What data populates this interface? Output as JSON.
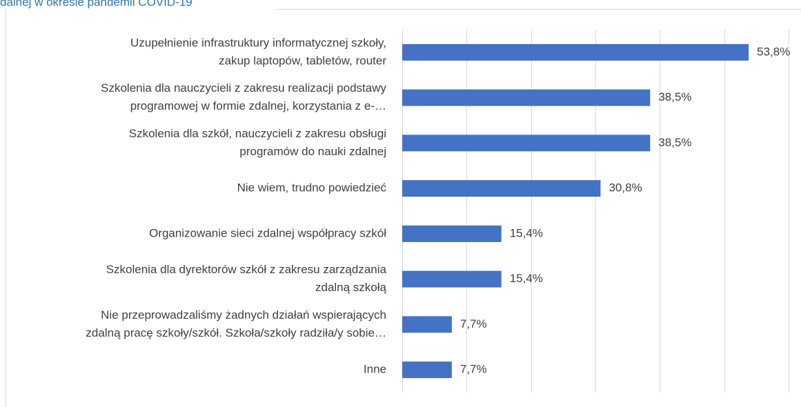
{
  "chart_data": {
    "type": "bar",
    "orientation": "horizontal",
    "title": "dalnej w okresie pandemii COVID-19",
    "categories": [
      [
        "Uzupełnienie infrastruktury informatycznej szkoły,",
        "zakup laptopów, tabletów, router"
      ],
      [
        "Szkolenia dla nauczycieli z zakresu realizacji podstawy",
        "programowej w formie zdalnej, korzystania z e-…"
      ],
      [
        "Szkolenia dla szkół, nauczycieli z zakresu obsługi",
        "programów do nauki zdalnej"
      ],
      [
        "Nie wiem, trudno powiedzieć"
      ],
      [
        "Organizowanie sieci zdalnej współpracy szkół"
      ],
      [
        "Szkolenia dla dyrektorów szkół z zakresu zarządzania",
        "zdalną szkołą"
      ],
      [
        "Nie przeprowadzaliśmy żadnych działań wspierających",
        "zdalną pracę szkoły/szkół. Szkoła/szkoły radziła/y sobie…"
      ],
      [
        "Inne"
      ]
    ],
    "values": [
      53.8,
      38.5,
      38.5,
      30.8,
      15.4,
      15.4,
      7.7,
      7.7
    ],
    "value_labels": [
      "53,8%",
      "38,5%",
      "38,5%",
      "30,8%",
      "15,4%",
      "15,4%",
      "7,7%",
      "7,7%"
    ],
    "color": "#4472c4",
    "xlim": [
      0,
      60
    ],
    "xticks": [
      0,
      10,
      20,
      30,
      40,
      50,
      60
    ],
    "grid": true
  }
}
